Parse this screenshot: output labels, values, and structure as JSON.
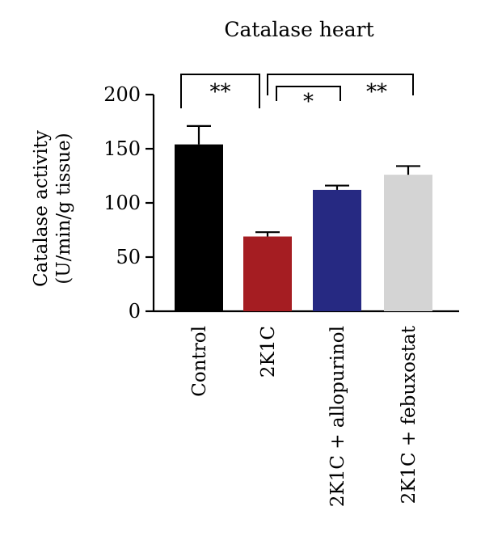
{
  "chart_data": {
    "type": "bar",
    "title": "Catalase heart",
    "ylabel_lines": [
      "Catalase activity",
      "(U/min/g tissue)"
    ],
    "xlabel": "",
    "ylim": [
      0,
      200
    ],
    "yticks": [
      0,
      50,
      100,
      150,
      200
    ],
    "categories": [
      "Control",
      "2K1C",
      "2K1C + allopurinol",
      "2K1C + febuxostat"
    ],
    "values": [
      154,
      69,
      112,
      126
    ],
    "errors": [
      17,
      4,
      4,
      8
    ],
    "colors": [
      "#000000",
      "#a51d22",
      "#262982",
      "#d4d4d4"
    ],
    "grid": false,
    "legend": "none",
    "significance": [
      {
        "from": 0,
        "to": 1,
        "label": "**"
      },
      {
        "from": 1,
        "to": 2,
        "label": "*"
      },
      {
        "from": 1,
        "to": 3,
        "label": "**"
      }
    ]
  }
}
